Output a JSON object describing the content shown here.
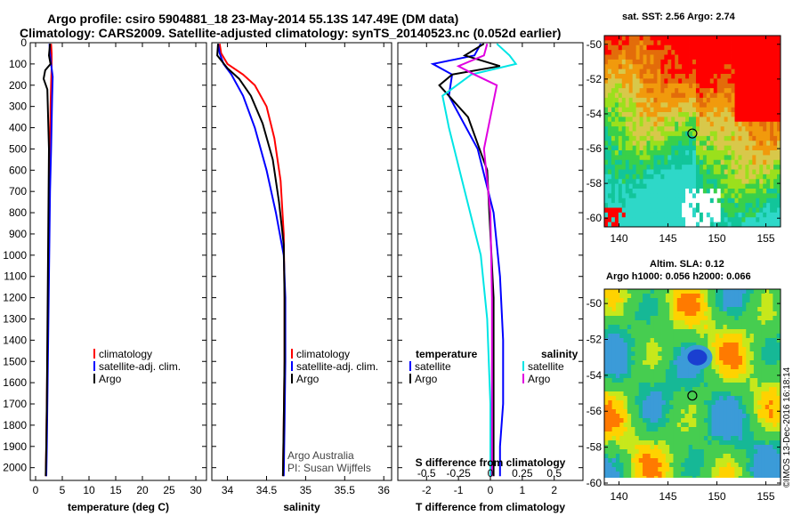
{
  "title_line1": "Argo profile: csiro 5904881_18 23-May-2014 55.13S 147.49E (DM data)",
  "title_line2": "Climatology: CARS2009. Satellite-adjusted climatology: synTS_20140523.nc (0.052d earlier)",
  "map_top_title": "sat. SST: 2.56 Argo: 2.74",
  "map_bottom_title1": "Altim. SLA: 0.12",
  "map_bottom_title2": "Argo h1000: 0.056 h2000: 0.066",
  "credit": "©IMOS 13-Dec-2016 16:18:14",
  "attribution1": "Argo Australia",
  "attribution2": "PI: Susan Wijffels",
  "colors": {
    "climatology": "#ff0000",
    "satellite": "#0000ff",
    "argo": "#000000",
    "sat_salinity": "#00e5e5",
    "argo_salinity": "#e000e0"
  },
  "chart_data": [
    {
      "type": "line",
      "name": "temperature",
      "xlabel": "temperature (deg C)",
      "xlim": [
        -1,
        32
      ],
      "ylim": [
        0,
        2060
      ],
      "xticks": [
        0,
        5,
        10,
        15,
        20,
        25,
        30
      ],
      "xticklabels": [
        "0",
        "5",
        "10",
        "15",
        "20",
        "25",
        "30"
      ],
      "yticks": [
        0,
        100,
        200,
        300,
        400,
        500,
        600,
        700,
        800,
        900,
        1000,
        1100,
        1200,
        1300,
        1400,
        1500,
        1600,
        1700,
        1800,
        1900,
        2000
      ],
      "legend": [
        "climatology",
        "satellite-adj. clim.",
        "Argo"
      ],
      "legend_position": "center-right",
      "series": [
        {
          "name": "climatology",
          "color": "#ff0000",
          "x": [
            2.9,
            3.0,
            3.0,
            2.9,
            2.8,
            2.7,
            2.6,
            2.5,
            2.4,
            2.3,
            2.2,
            2.1,
            2.0,
            1.9
          ],
          "y": [
            5,
            50,
            120,
            200,
            300,
            500,
            700,
            900,
            1100,
            1300,
            1500,
            1700,
            1900,
            2040
          ]
        },
        {
          "name": "satellite-adj. clim.",
          "color": "#0000ff",
          "x": [
            2.6,
            2.7,
            2.9,
            3.2,
            3.1,
            2.9,
            2.7,
            2.6,
            2.5,
            2.4,
            2.3,
            2.2,
            2.1,
            2.0
          ],
          "y": [
            5,
            50,
            100,
            160,
            250,
            500,
            700,
            900,
            1100,
            1300,
            1500,
            1700,
            1900,
            2040
          ]
        },
        {
          "name": "Argo",
          "color": "#000000",
          "x": [
            2.7,
            2.5,
            2.8,
            1.8,
            1.5,
            2.2,
            2.5,
            2.4,
            2.3,
            2.2,
            2.1,
            2.0,
            1.9
          ],
          "y": [
            5,
            60,
            100,
            130,
            170,
            220,
            500,
            800,
            1100,
            1400,
            1700,
            1900,
            2040
          ]
        }
      ]
    },
    {
      "type": "line",
      "name": "salinity",
      "xlabel": "salinity",
      "xlim": [
        33.8,
        36.1
      ],
      "ylim": [
        0,
        2060
      ],
      "xticks": [
        34,
        34.5,
        35,
        35.5,
        36
      ],
      "xticklabels": [
        "34",
        "34.5",
        "35",
        "35.5",
        "36"
      ],
      "legend": [
        "climatology",
        "satellite-adj. clim.",
        "Argo"
      ],
      "legend_position": "center-right",
      "series": [
        {
          "name": "climatology",
          "color": "#ff0000",
          "x": [
            33.9,
            33.92,
            34.0,
            34.2,
            34.35,
            34.5,
            34.6,
            34.68,
            34.72,
            34.73,
            34.73,
            34.72,
            34.71
          ],
          "y": [
            5,
            50,
            100,
            150,
            200,
            300,
            450,
            650,
            900,
            1200,
            1500,
            1800,
            2040
          ]
        },
        {
          "name": "satellite-adj. clim.",
          "color": "#0000ff",
          "x": [
            33.88,
            33.9,
            33.95,
            34.05,
            34.2,
            34.35,
            34.5,
            34.62,
            34.72,
            34.74,
            34.74,
            34.73,
            34.72
          ],
          "y": [
            5,
            50,
            100,
            150,
            250,
            400,
            600,
            800,
            1000,
            1200,
            1500,
            1800,
            2040
          ]
        },
        {
          "name": "Argo",
          "color": "#000000",
          "x": [
            33.88,
            33.87,
            34.0,
            34.15,
            34.3,
            34.45,
            34.58,
            34.66,
            34.72,
            34.73,
            34.73,
            34.72,
            34.71
          ],
          "y": [
            5,
            60,
            120,
            170,
            250,
            380,
            550,
            750,
            950,
            1200,
            1500,
            1800,
            2040
          ]
        }
      ]
    },
    {
      "type": "line",
      "name": "difference",
      "xlabel": "T difference from climatology",
      "xlabel_top": "S difference from climatology",
      "xlim": [
        -2.9,
        2.9
      ],
      "ylim": [
        0,
        2060
      ],
      "xticks": [
        -2,
        -1,
        0,
        1,
        2
      ],
      "xticklabels": [
        "-2",
        "-1",
        "0",
        "1",
        "2"
      ],
      "top_xticks": [
        -2,
        -1,
        0,
        1,
        2
      ],
      "top_xticklabels": [
        "-0.5",
        "-0.25",
        "0",
        "0.25",
        "0.5"
      ],
      "legend": [
        "temperature",
        "satellite",
        "Argo",
        "salinity",
        "satellite",
        "Argo"
      ],
      "legend_position": "center",
      "series": [
        {
          "name": "T satellite",
          "color": "#0000ff",
          "x": [
            -0.3,
            -0.5,
            -1.8,
            -1.2,
            -1.3,
            -0.4,
            0.1,
            0.3,
            0.4,
            0.4,
            0.3,
            0.3
          ],
          "y": [
            5,
            60,
            100,
            150,
            250,
            500,
            800,
            1100,
            1400,
            1700,
            1900,
            2040
          ]
        },
        {
          "name": "T Argo",
          "color": "#000000",
          "x": [
            -0.2,
            -0.8,
            0.3,
            -1.2,
            -1.6,
            -0.7,
            -0.1,
            0.0,
            0.1,
            0.1,
            0.1,
            0.1
          ],
          "y": [
            5,
            60,
            110,
            150,
            200,
            350,
            600,
            900,
            1200,
            1500,
            1800,
            2040
          ]
        },
        {
          "name": "S satellite",
          "color": "#00e5e5",
          "x": [
            0.2,
            0.6,
            0.8,
            -0.6,
            -1.5,
            -1.3,
            -0.8,
            -0.3,
            -0.1,
            0.0,
            0.0
          ],
          "y": [
            5,
            60,
            100,
            150,
            250,
            400,
            700,
            1000,
            1300,
            1700,
            2040
          ]
        },
        {
          "name": "S Argo",
          "color": "#e000e0",
          "x": [
            -0.1,
            -0.2,
            -1.0,
            -0.5,
            0.2,
            -0.2,
            0.0,
            0.05,
            0.05,
            0.05
          ],
          "y": [
            5,
            60,
            110,
            150,
            200,
            500,
            800,
            1200,
            1600,
            2040
          ]
        }
      ]
    },
    {
      "type": "heatmap",
      "name": "sst_map",
      "title": "sat. SST: 2.56 Argo: 2.74",
      "xlim": [
        138.5,
        156.5
      ],
      "ylim": [
        -60.5,
        -49.5
      ],
      "xticks": [
        140,
        145,
        150,
        155
      ],
      "yticks": [
        -50,
        -52,
        -54,
        -56,
        -58,
        -60
      ],
      "profile_lon": 147.49,
      "profile_lat": -55.13
    },
    {
      "type": "heatmap",
      "name": "sla_map",
      "title": "Altim. SLA: 0.12",
      "xlim": [
        138.5,
        156.5
      ],
      "ylim": [
        -60.1,
        -49.2
      ],
      "xticks": [
        140,
        145,
        150,
        155
      ],
      "yticks": [
        -50,
        -52,
        -54,
        -56,
        -58,
        -60
      ],
      "profile_lon": 147.49,
      "profile_lat": -55.13
    }
  ]
}
